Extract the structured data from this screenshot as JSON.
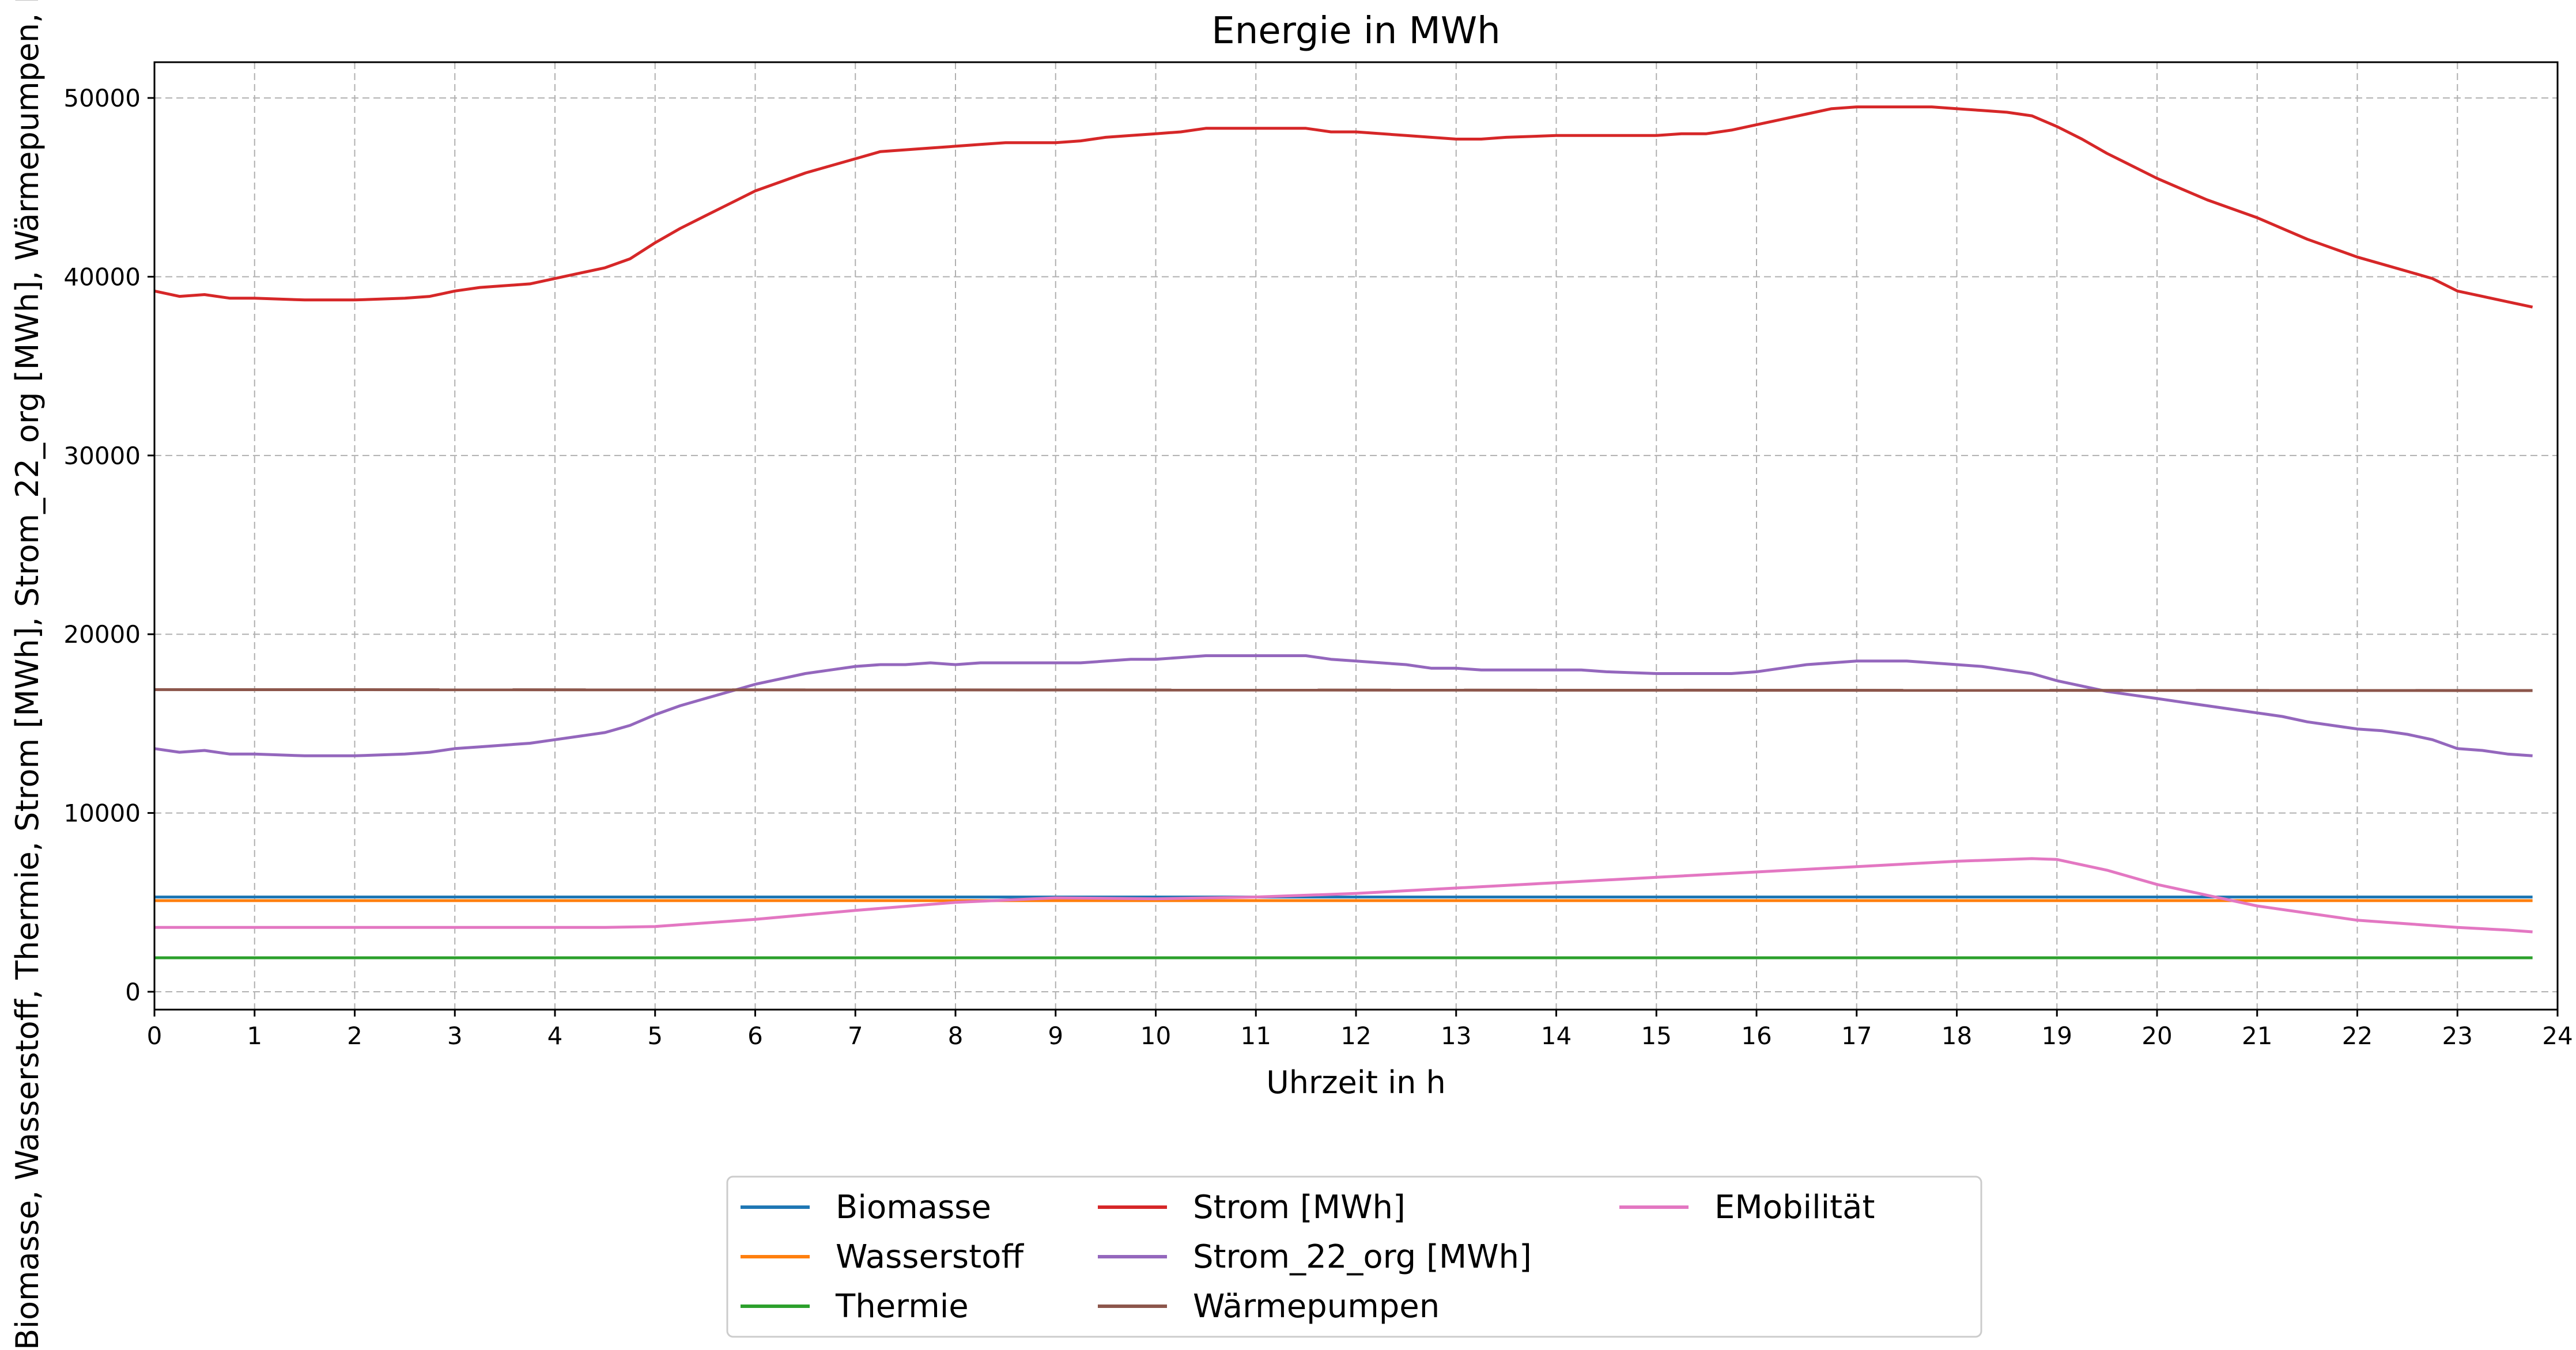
{
  "chart_data": {
    "type": "line",
    "title": "Energie in MWh",
    "xlabel": "Uhrzeit in h",
    "ylabel": "Biomasse, Wasserstoff, Thermie, Strom [MWh], Strom_22_org [MWh], Wärmepumpen, EMobilität",
    "xlim": [
      0,
      24
    ],
    "ylim": [
      -1000,
      52000
    ],
    "xticks": [
      0,
      1,
      2,
      3,
      4,
      5,
      6,
      7,
      8,
      9,
      10,
      11,
      12,
      13,
      14,
      15,
      16,
      17,
      18,
      19,
      20,
      21,
      22,
      23,
      24
    ],
    "yticks": [
      0,
      10000,
      20000,
      30000,
      40000,
      50000
    ],
    "grid": true,
    "legend": "bottom-center, below plot, 3 columns",
    "series": [
      {
        "name": "Biomasse",
        "color": "#1f77b4",
        "x": [
          0,
          23.75
        ],
        "y": [
          5300,
          5300
        ]
      },
      {
        "name": "Wasserstoff",
        "color": "#ff7f0e",
        "x": [
          0,
          23.75
        ],
        "y": [
          5100,
          5100
        ]
      },
      {
        "name": "Thermie",
        "color": "#2ca02c",
        "x": [
          0,
          23.75
        ],
        "y": [
          1900,
          1900
        ]
      },
      {
        "name": "Strom [MWh]",
        "color": "#d62728",
        "x": [
          0,
          0.25,
          0.5,
          0.75,
          1,
          1.5,
          2,
          2.5,
          2.75,
          3,
          3.25,
          3.5,
          3.75,
          4,
          4.25,
          4.5,
          4.75,
          5,
          5.25,
          5.5,
          5.75,
          6,
          6.25,
          6.5,
          6.75,
          7,
          7.25,
          7.5,
          7.75,
          8,
          8.25,
          8.5,
          8.75,
          9,
          9.25,
          9.5,
          9.75,
          10,
          10.25,
          10.5,
          11,
          11.5,
          11.75,
          12,
          12.5,
          12.75,
          13,
          13.25,
          13.5,
          14,
          14.25,
          14.5,
          15,
          15.25,
          15.5,
          15.75,
          16,
          16.25,
          16.5,
          16.75,
          17,
          17.25,
          17.5,
          17.75,
          18,
          18.25,
          18.5,
          18.75,
          19,
          19.25,
          19.5,
          19.75,
          20,
          20.25,
          20.5,
          20.75,
          21,
          21.25,
          21.5,
          21.75,
          22,
          22.25,
          22.5,
          22.75,
          23,
          23.25,
          23.5,
          23.75
        ],
        "y": [
          39200,
          38900,
          39000,
          38800,
          38800,
          38700,
          38700,
          38800,
          38900,
          39200,
          39400,
          39500,
          39600,
          39900,
          40200,
          40500,
          41000,
          41900,
          42700,
          43400,
          44100,
          44800,
          45300,
          45800,
          46200,
          46600,
          47000,
          47100,
          47200,
          47300,
          47400,
          47500,
          47500,
          47500,
          47600,
          47800,
          47900,
          48000,
          48100,
          48300,
          48300,
          48300,
          48100,
          48100,
          47900,
          47800,
          47700,
          47700,
          47800,
          47900,
          47900,
          47900,
          47900,
          48000,
          48000,
          48200,
          48500,
          48800,
          49100,
          49400,
          49500,
          49500,
          49500,
          49500,
          49400,
          49300,
          49200,
          49000,
          48400,
          47700,
          46900,
          46200,
          45500,
          44900,
          44300,
          43800,
          43300,
          42700,
          42100,
          41600,
          41100,
          40700,
          40300,
          39900,
          39200,
          38900,
          38600,
          38300
        ]
      },
      {
        "name": "Strom_22_org [MWh]",
        "color": "#9467bd",
        "x": [
          0,
          0.25,
          0.5,
          0.75,
          1,
          1.5,
          2,
          2.5,
          2.75,
          3,
          3.25,
          3.5,
          3.75,
          4,
          4.25,
          4.5,
          4.75,
          5,
          5.25,
          5.5,
          5.75,
          6,
          6.25,
          6.5,
          6.75,
          7,
          7.25,
          7.5,
          7.75,
          8,
          8.25,
          8.5,
          8.75,
          9,
          9.25,
          9.5,
          9.75,
          10,
          10.25,
          10.5,
          11,
          11.5,
          11.75,
          12,
          12.5,
          12.75,
          13,
          13.25,
          13.5,
          14,
          14.25,
          14.5,
          15,
          15.25,
          15.5,
          15.75,
          16,
          16.25,
          16.5,
          16.75,
          17,
          17.25,
          17.5,
          17.75,
          18,
          18.25,
          18.5,
          18.75,
          19,
          19.25,
          19.5,
          19.75,
          20,
          20.25,
          20.5,
          20.75,
          21,
          21.25,
          21.5,
          21.75,
          22,
          22.25,
          22.5,
          22.75,
          23,
          23.25,
          23.5,
          23.75
        ],
        "y": [
          13600,
          13400,
          13500,
          13300,
          13300,
          13200,
          13200,
          13300,
          13400,
          13600,
          13700,
          13800,
          13900,
          14100,
          14300,
          14500,
          14900,
          15500,
          16000,
          16400,
          16800,
          17200,
          17500,
          17800,
          18000,
          18200,
          18300,
          18300,
          18400,
          18300,
          18400,
          18400,
          18400,
          18400,
          18400,
          18500,
          18600,
          18600,
          18700,
          18800,
          18800,
          18800,
          18600,
          18500,
          18300,
          18100,
          18100,
          18000,
          18000,
          18000,
          18000,
          17900,
          17800,
          17800,
          17800,
          17800,
          17900,
          18100,
          18300,
          18400,
          18500,
          18500,
          18500,
          18400,
          18300,
          18200,
          18000,
          17800,
          17400,
          17100,
          16800,
          16600,
          16400,
          16200,
          16000,
          15800,
          15600,
          15400,
          15100,
          14900,
          14700,
          14600,
          14400,
          14100,
          13600,
          13500,
          13300,
          13200
        ]
      },
      {
        "name": "Wärmepumpen",
        "color": "#8c564b",
        "x": [
          0,
          23.75
        ],
        "y": [
          16900,
          16850
        ]
      },
      {
        "name": "EMobilität",
        "color": "#e377c2",
        "x": [
          0,
          4.5,
          5,
          6,
          7,
          8,
          9,
          10,
          11,
          12,
          13,
          14,
          15,
          16,
          17,
          18,
          18.75,
          19,
          19.5,
          20,
          20.5,
          21,
          21.5,
          22,
          22.5,
          23,
          23.5,
          23.75
        ],
        "y": [
          3600,
          3600,
          3650,
          4050,
          4550,
          5000,
          5250,
          5200,
          5300,
          5500,
          5800,
          6100,
          6400,
          6700,
          7000,
          7300,
          7450,
          7400,
          6800,
          6000,
          5400,
          4800,
          4400,
          4000,
          3800,
          3600,
          3450,
          3350
        ]
      }
    ]
  }
}
